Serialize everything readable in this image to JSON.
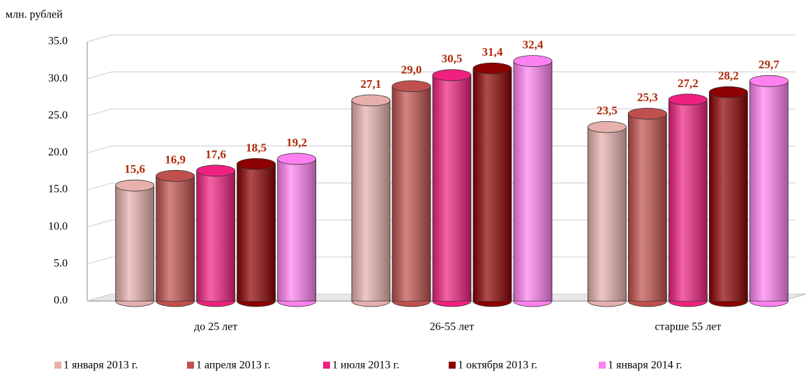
{
  "chart_data": {
    "type": "bar",
    "y_label": "млн. рублей",
    "categories": [
      "до 25 лет",
      "26-55 лет",
      "старше 55 лет"
    ],
    "series": [
      {
        "name": "1 января 2013 г.",
        "color": "#e6b0ac",
        "values": [
          15.6,
          27.1,
          23.5
        ],
        "value_labels": [
          "15,6",
          "27,1",
          "23,5"
        ]
      },
      {
        "name": "1 апреля 2013 г.",
        "color": "#c0504d",
        "values": [
          16.9,
          29.0,
          25.3
        ],
        "value_labels": [
          "16,9",
          "29,0",
          "25,3"
        ]
      },
      {
        "name": "1  июля 2013 г.",
        "color": "#f0207f",
        "values": [
          17.6,
          30.5,
          27.2
        ],
        "value_labels": [
          "17,6",
          "30,5",
          "27,2"
        ]
      },
      {
        "name": "1 октября 2013 г.",
        "color": "#8b0000",
        "values": [
          18.5,
          31.4,
          28.2
        ],
        "value_labels": [
          "18,5",
          "31,4",
          "28,2"
        ]
      },
      {
        "name": "1 января 2014 г.",
        "color": "#ff80f0",
        "values": [
          19.2,
          32.4,
          29.7
        ],
        "value_labels": [
          "19,2",
          "32,4",
          "29,7"
        ]
      }
    ],
    "ylim": [
      0,
      35
    ],
    "yticks": [
      {
        "value": 0,
        "label": "0.0"
      },
      {
        "value": 5,
        "label": "5.0"
      },
      {
        "value": 10,
        "label": "10.0"
      },
      {
        "value": 15,
        "label": "15.0"
      },
      {
        "value": 20,
        "label": "20.0"
      },
      {
        "value": 25,
        "label": "25.0"
      },
      {
        "value": 30,
        "label": "30.0"
      },
      {
        "value": 35,
        "label": "35.0"
      }
    ],
    "grid": true,
    "legend": "bottom"
  }
}
